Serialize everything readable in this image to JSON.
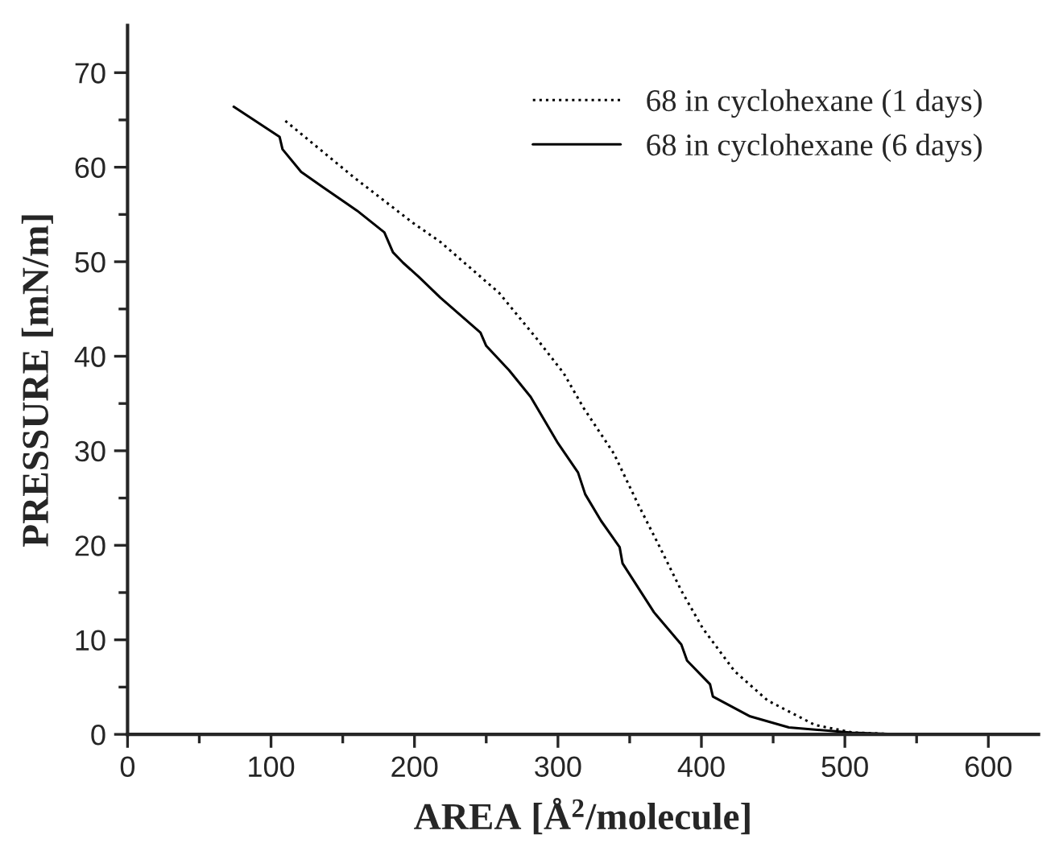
{
  "chart_data": {
    "type": "line",
    "xlabel": "AREA [Å$^{2}$/molecule]",
    "ylabel": "PRESSURE [mN/m]",
    "xlim": [
      0,
      635
    ],
    "ylim": [
      0,
      75
    ],
    "xticks": [
      0,
      {
        "value": 50,
        "label": null
      },
      100,
      {
        "value": 150,
        "label": null
      },
      200,
      {
        "value": 250,
        "label": null
      },
      300,
      {
        "value": 350,
        "label": null
      },
      400,
      {
        "value": 450,
        "label": null
      },
      500,
      {
        "value": 550,
        "label": null
      },
      600
    ],
    "yticks": [
      0,
      {
        "value": 5,
        "label": null
      },
      10,
      {
        "value": 15,
        "label": null
      },
      20,
      {
        "value": 25,
        "label": null
      },
      30,
      {
        "value": 35,
        "label": null
      },
      40,
      {
        "value": 45,
        "label": null
      },
      50,
      {
        "value": 55,
        "label": null
      },
      60,
      {
        "value": 65,
        "label": null
      },
      70
    ],
    "grid": false,
    "legend": "top right",
    "series": [
      {
        "name": "68 in cyclohexane (1 days)",
        "color": "#000000",
        "line_style": "dotted",
        "x": [
          110,
          158,
          199,
          218,
          259,
          285,
          304,
          318,
          339,
          356,
          371,
          386,
          401,
          423,
          446,
          479,
          505,
          530,
          560
        ],
        "values": [
          64.9,
          58.9,
          54.1,
          52.1,
          46.7,
          41.9,
          38.2,
          34.5,
          29.7,
          24.3,
          19.8,
          15.2,
          11.2,
          6.7,
          3.6,
          1.0,
          0.2,
          0.05,
          0
        ]
      },
      {
        "name": "68 in cyclohexane (6 days)",
        "color": "#000000",
        "line_style": "solid",
        "x": [
          74,
          106,
          108,
          121,
          136,
          160,
          179,
          185,
          192,
          203,
          218,
          246,
          250,
          266,
          281,
          300,
          314,
          319,
          330,
          343,
          345,
          367,
          386,
          390,
          406,
          408,
          434,
          461,
          505,
          530,
          560
        ],
        "values": [
          66.4,
          63.2,
          61.9,
          59.5,
          57.9,
          55.4,
          53.1,
          51.0,
          49.9,
          48.4,
          46.2,
          42.5,
          41.1,
          38.5,
          35.7,
          30.8,
          27.7,
          25.4,
          22.6,
          19.8,
          18.1,
          12.9,
          9.5,
          7.8,
          5.3,
          4.0,
          1.9,
          0.73,
          0.17,
          0.05,
          0
        ]
      }
    ]
  }
}
